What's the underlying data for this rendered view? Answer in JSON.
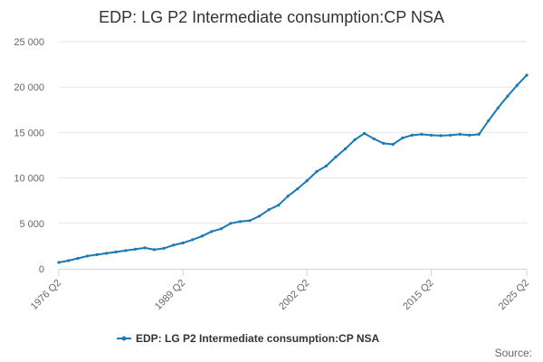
{
  "chart_data": {
    "type": "line",
    "title": "EDP: LG P2 Intermediate consumption:CP NSA",
    "xlabel": "",
    "ylabel": "",
    "x_tick_labels": [
      "1976 Q2",
      "1989 Q2",
      "2002 Q2",
      "2015 Q2",
      "2025 Q2"
    ],
    "y_ticks": [
      0,
      5000,
      10000,
      15000,
      20000,
      25000
    ],
    "y_tick_labels": [
      "0",
      "5 000",
      "10 000",
      "15 000",
      "20 000",
      "25 000"
    ],
    "ylim": [
      0,
      25000
    ],
    "grid": true,
    "legend_position": "bottom-center",
    "source_label": "Source:",
    "colors": {
      "series": "#1a7ab5",
      "grid": "#e6e6e6",
      "axis": "#ccd6eb"
    },
    "series": [
      {
        "name": "EDP: LG P2 Intermediate consumption:CP NSA",
        "x": [
          "1976 Q2",
          "1977 Q2",
          "1978 Q2",
          "1979 Q2",
          "1980 Q2",
          "1981 Q2",
          "1982 Q2",
          "1983 Q2",
          "1984 Q2",
          "1985 Q2",
          "1986 Q2",
          "1987 Q2",
          "1988 Q2",
          "1989 Q2",
          "1990 Q2",
          "1991 Q2",
          "1992 Q2",
          "1993 Q2",
          "1994 Q2",
          "1995 Q2",
          "1996 Q2",
          "1997 Q2",
          "1998 Q2",
          "1999 Q2",
          "2000 Q2",
          "2001 Q2",
          "2002 Q2",
          "2003 Q2",
          "2004 Q2",
          "2005 Q2",
          "2006 Q2",
          "2007 Q2",
          "2008 Q2",
          "2009 Q2",
          "2010 Q2",
          "2011 Q2",
          "2012 Q2",
          "2013 Q2",
          "2014 Q2",
          "2015 Q2",
          "2016 Q2",
          "2017 Q2",
          "2018 Q2",
          "2019 Q2",
          "2020 Q2",
          "2021 Q2",
          "2022 Q2",
          "2023 Q2",
          "2024 Q2",
          "2025 Q2"
        ],
        "values": [
          700,
          900,
          1150,
          1400,
          1550,
          1700,
          1850,
          2000,
          2150,
          2300,
          2100,
          2250,
          2600,
          2850,
          3200,
          3600,
          4100,
          4400,
          5000,
          5200,
          5300,
          5800,
          6500,
          7000,
          8000,
          8800,
          9700,
          10700,
          11300,
          12300,
          13200,
          14200,
          14900,
          14300,
          13800,
          13700,
          14400,
          14700,
          14800,
          14700,
          14650,
          14700,
          14800,
          14700,
          14800,
          16300,
          17700,
          19000,
          20200,
          21300
        ]
      }
    ]
  }
}
